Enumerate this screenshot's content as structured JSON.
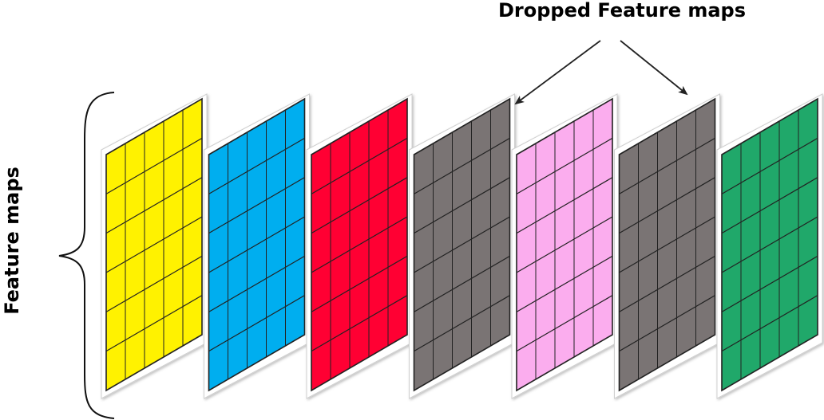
{
  "labels": {
    "dropped": "Dropped Feature maps",
    "feature_maps": "Feature maps"
  },
  "grid": {
    "columns": 5,
    "rows": 6
  },
  "maps": [
    {
      "name": "feature-map-yellow",
      "color": "#FFF200",
      "dropped": false
    },
    {
      "name": "feature-map-blue",
      "color": "#00AEEF",
      "dropped": false
    },
    {
      "name": "feature-map-red",
      "color": "#FF0033",
      "dropped": false
    },
    {
      "name": "feature-map-gray",
      "color": "#7A7474",
      "dropped": true
    },
    {
      "name": "feature-map-pink",
      "color": "#FBADEE",
      "dropped": false
    },
    {
      "name": "feature-map-gray-2",
      "color": "#7A7474",
      "dropped": true
    },
    {
      "name": "feature-map-green",
      "color": "#20A86A",
      "dropped": false
    }
  ],
  "colors": {
    "grid_line": "#222222",
    "frame": "#d0d0d0",
    "text": "#000000"
  }
}
